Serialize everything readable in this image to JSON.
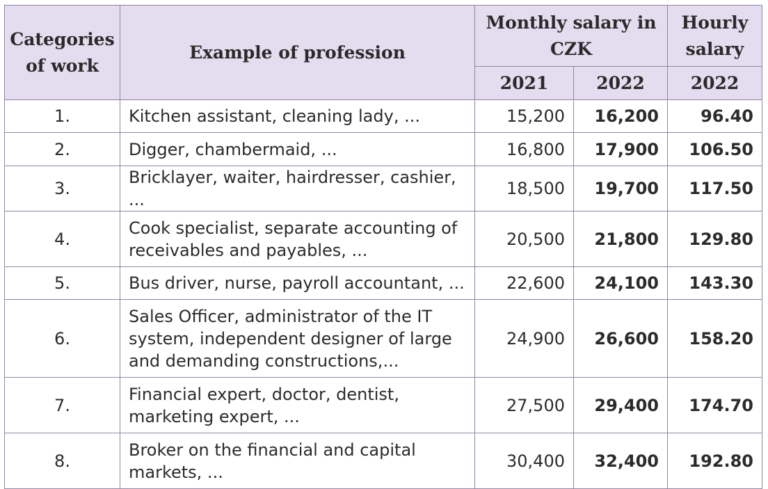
{
  "header": {
    "categories": "Categories of work",
    "example": "Example of profession",
    "monthly": "Monthly salary in CZK",
    "hourly": "Hourly salary",
    "year_2021": "2021",
    "year_2022a": "2022",
    "year_2022b": "2022"
  },
  "rows": [
    {
      "cat": "1.",
      "prof": "Kitchen assistant, cleaning lady, ...",
      "m2021": "15,200",
      "m2022": "16,200",
      "h2022": "96.40"
    },
    {
      "cat": "2.",
      "prof": "Digger, chambermaid, ...",
      "m2021": "16,800",
      "m2022": "17,900",
      "h2022": "106.50"
    },
    {
      "cat": "3.",
      "prof": "Bricklayer, waiter, hairdresser, cashier, ...",
      "m2021": "18,500",
      "m2022": "19,700",
      "h2022": "117.50"
    },
    {
      "cat": "4.",
      "prof": "Cook specialist, separate accounting of receivables and payables, ...",
      "m2021": "20,500",
      "m2022": "21,800",
      "h2022": "129.80"
    },
    {
      "cat": "5.",
      "prof": "Bus driver, nurse, payroll accountant, ...",
      "m2021": "22,600",
      "m2022": "24,100",
      "h2022": "143.30"
    },
    {
      "cat": "6.",
      "prof": "Sales Officer, administrator of the IT system, independent designer of large and demanding constructions,...",
      "m2021": "24,900",
      "m2022": "26,600",
      "h2022": "158.20"
    },
    {
      "cat": "7.",
      "prof": "Financial expert, doctor, dentist, marketing expert, ...",
      "m2021": "27,500",
      "m2022": "29,400",
      "h2022": "174.70"
    },
    {
      "cat": "8.",
      "prof": "Broker on the financial and capital markets, ...",
      "m2021": "30,400",
      "m2022": "32,400",
      "h2022": "192.80"
    }
  ]
}
